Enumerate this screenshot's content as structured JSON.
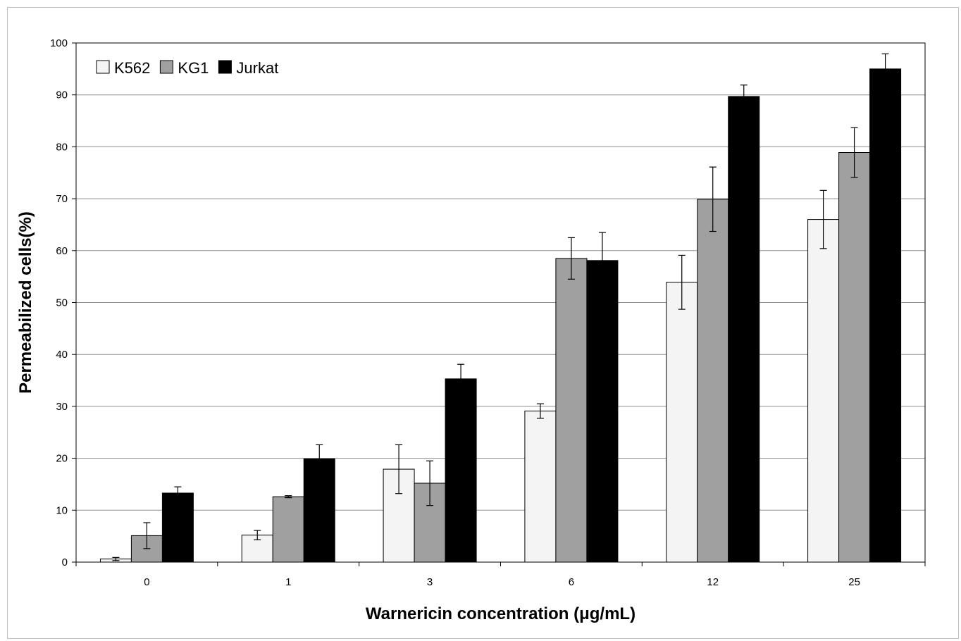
{
  "chart_data": {
    "type": "bar",
    "title": "",
    "xlabel": "Warnericin concentration (μg/mL)",
    "ylabel": "Permeabilized cells(%)",
    "categories": [
      "0",
      "1",
      "3",
      "6",
      "12",
      "25"
    ],
    "ylim": [
      0,
      100
    ],
    "yticks": [
      "0",
      "10",
      "20",
      "30",
      "40",
      "50",
      "60",
      "70",
      "80",
      "90",
      "100"
    ],
    "grid": true,
    "legend_position": "top-left",
    "series": [
      {
        "name": "K562",
        "color": "#f4f4f4",
        "values": [
          0.6,
          5.2,
          17.9,
          29.1,
          53.9,
          66.0
        ],
        "errors": [
          0.3,
          0.9,
          4.7,
          1.4,
          5.2,
          5.6
        ]
      },
      {
        "name": "KG1",
        "color": "#a0a0a0",
        "values": [
          5.1,
          12.6,
          15.2,
          58.5,
          69.9,
          78.9
        ],
        "errors": [
          2.5,
          0.2,
          4.3,
          4.0,
          6.2,
          4.8
        ]
      },
      {
        "name": "Jurkat",
        "color": "#000000",
        "values": [
          13.3,
          19.9,
          35.3,
          58.1,
          89.7,
          95.0
        ],
        "errors": [
          1.2,
          2.7,
          2.8,
          5.4,
          2.2,
          2.9
        ]
      }
    ]
  }
}
